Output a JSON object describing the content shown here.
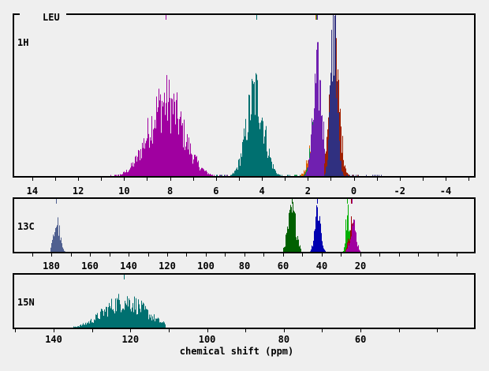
{
  "title": "LEU",
  "xlabel": "chemical shift (ppm)",
  "chart_data": [
    {
      "type": "bar",
      "nucleus": "1H",
      "xlim": [
        14.82,
        -5.27
      ],
      "tick_step": 1,
      "tick_labels": [
        "14",
        "12",
        "10",
        "8",
        "6",
        "4",
        "2",
        "0",
        "-2",
        "-4"
      ],
      "tick_label_values": [
        14,
        12,
        10,
        8,
        6,
        4,
        2,
        0,
        -2,
        -4
      ],
      "ref_markers": [
        {
          "ppm": 8.2,
          "color": "#a000a0"
        },
        {
          "ppm": 4.25,
          "color": "#007070"
        },
        {
          "ppm": 1.66,
          "color": "#e06000"
        },
        {
          "ppm": 1.64,
          "color": "#009040"
        },
        {
          "ppm": 1.6,
          "color": "#7020b0"
        },
        {
          "ppm": 0.9,
          "color": "#303080"
        },
        {
          "ppm": 0.82,
          "color": "#303080"
        }
      ],
      "series": [
        {
          "color": "#a000a0",
          "center": 8.2,
          "sd": 0.75,
          "peak": 0.5,
          "range": [
            10.6,
            5.3
          ]
        },
        {
          "color": "#007070",
          "center": 4.3,
          "sd": 0.38,
          "peak": 0.55,
          "range": [
            6.0,
            2.8
          ]
        },
        {
          "color": "#e06000",
          "center": 1.7,
          "sd": 0.25,
          "peak": 0.25,
          "range": [
            2.6,
            1.2
          ]
        },
        {
          "color": "#009040",
          "center": 1.62,
          "sd": 0.22,
          "peak": 0.42,
          "range": [
            2.6,
            1.1
          ]
        },
        {
          "color": "#7020b0",
          "center": 1.58,
          "sd": 0.2,
          "peak": 0.66,
          "range": [
            2.2,
            0.9
          ]
        },
        {
          "color": "#a02000",
          "center": 0.85,
          "sd": 0.22,
          "peak": 0.72,
          "range": [
            1.3,
            -0.3
          ]
        },
        {
          "color": "#303080",
          "center": 0.88,
          "sd": 0.14,
          "peak": 1.0,
          "range": [
            1.3,
            -1.2
          ]
        }
      ]
    },
    {
      "type": "bar",
      "nucleus": "13C",
      "xlim": [
        199.6,
        -39.2
      ],
      "tick_step": 10,
      "tick_labels": [
        "180",
        "160",
        "140",
        "120",
        "100",
        "80",
        "60",
        "40",
        "20"
      ],
      "tick_label_values": [
        180,
        160,
        140,
        120,
        100,
        80,
        60,
        40,
        20
      ],
      "ref_markers": [
        {
          "ppm": 177.5,
          "color": "#506090"
        },
        {
          "ppm": 55.5,
          "color": "#006000"
        },
        {
          "ppm": 42.3,
          "color": "#0000b0"
        },
        {
          "ppm": 26.8,
          "color": "#00b000"
        },
        {
          "ppm": 25.0,
          "color": "#a00000"
        },
        {
          "ppm": 24.6,
          "color": "#a000a0"
        }
      ],
      "series": [
        {
          "color": "#506090",
          "center": 177.3,
          "sd": 1.6,
          "peak": 0.6,
          "range": [
            180.5,
            169
          ]
        },
        {
          "color": "#006000",
          "center": 55.5,
          "sd": 2.2,
          "peak": 0.8,
          "range": [
            60,
            51
          ]
        },
        {
          "color": "#0000b0",
          "center": 42.3,
          "sd": 1.5,
          "peak": 0.9,
          "range": [
            48,
            37
          ]
        },
        {
          "color": "#00b000",
          "center": 26.8,
          "sd": 0.9,
          "peak": 0.9,
          "range": [
            30,
            23
          ]
        },
        {
          "color": "#a00000",
          "center": 24.5,
          "sd": 1.5,
          "peak": 0.6,
          "range": [
            28,
            20
          ]
        },
        {
          "color": "#a000a0",
          "center": 24.0,
          "sd": 1.6,
          "peak": 0.58,
          "range": [
            28,
            17
          ]
        }
      ]
    },
    {
      "type": "bar",
      "nucleus": "15N",
      "xlim": [
        150.5,
        30.2
      ],
      "tick_step": 10,
      "tick_labels": [
        "140",
        "120",
        "100",
        "80",
        "60"
      ],
      "tick_label_values": [
        140,
        120,
        100,
        80,
        60
      ],
      "ref_markers": [
        {
          "ppm": 121.8,
          "color": "#007070"
        }
      ],
      "series": [
        {
          "color": "#007070",
          "center": 121.5,
          "sd": 5.5,
          "peak": 0.55,
          "range": [
            135,
            111
          ]
        }
      ]
    }
  ]
}
